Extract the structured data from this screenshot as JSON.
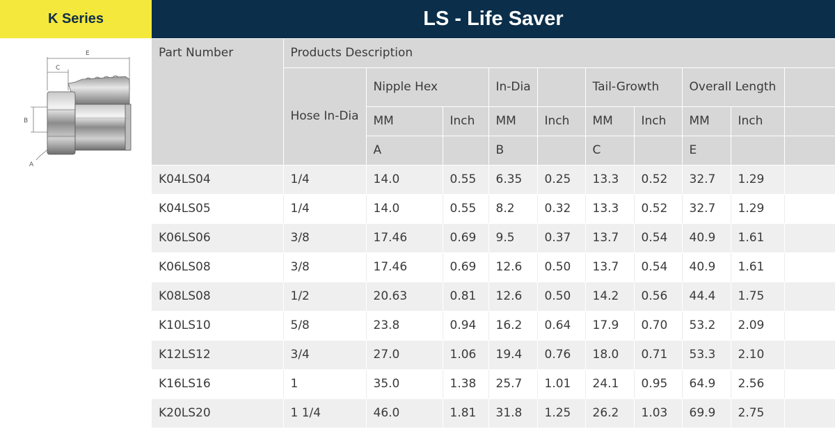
{
  "series_label": "K Series",
  "title": "LS - Life Saver",
  "diagram": {
    "labels": {
      "e": "E",
      "c": "C",
      "b": "B",
      "a": "A"
    }
  },
  "table": {
    "part_number_header": "Part Number",
    "products_description_header": "Products Description",
    "hose_header": "Hose In-Dia",
    "groups": [
      "Nipple Hex",
      "In-Dia",
      "",
      "Tail-Growth",
      "Overall Length",
      ""
    ],
    "units": [
      "MM",
      "Inch",
      "MM",
      "Inch",
      "MM",
      "Inch",
      "MM",
      "Inch",
      ""
    ],
    "letters": [
      "A",
      "",
      "B",
      "",
      "C",
      "",
      "E",
      "",
      ""
    ],
    "rows": [
      [
        "K04LS04",
        "1/4",
        "14.0",
        "0.55",
        "6.35",
        "0.25",
        "13.3",
        "0.52",
        "32.7",
        "1.29",
        ""
      ],
      [
        "K04LS05",
        "1/4",
        "14.0",
        "0.55",
        "8.2",
        "0.32",
        "13.3",
        "0.52",
        "32.7",
        "1.29",
        ""
      ],
      [
        "K06LS06",
        "3/8",
        "17.46",
        "0.69",
        "9.5",
        "0.37",
        "13.7",
        "0.54",
        "40.9",
        "1.61",
        ""
      ],
      [
        "K06LS08",
        "3/8",
        "17.46",
        "0.69",
        "12.6",
        "0.50",
        "13.7",
        "0.54",
        "40.9",
        "1.61",
        ""
      ],
      [
        "K08LS08",
        "1/2",
        "20.63",
        "0.81",
        "12.6",
        "0.50",
        "14.2",
        "0.56",
        "44.4",
        "1.75",
        ""
      ],
      [
        "K10LS10",
        "5/8",
        "23.8",
        "0.94",
        "16.2",
        "0.64",
        "17.9",
        "0.70",
        "53.2",
        "2.09",
        ""
      ],
      [
        "K12LS12",
        "3/4",
        "27.0",
        "1.06",
        "19.4",
        "0.76",
        "18.0",
        "0.71",
        "53.3",
        "2.10",
        ""
      ],
      [
        "K16LS16",
        "1",
        "35.0",
        "1.38",
        "25.7",
        "1.01",
        "24.1",
        "0.95",
        "64.9",
        "2.56",
        ""
      ],
      [
        "K20LS20",
        "1 1/4",
        "46.0",
        "1.81",
        "31.8",
        "1.25",
        "26.2",
        "1.03",
        "69.9",
        "2.75",
        ""
      ]
    ]
  }
}
